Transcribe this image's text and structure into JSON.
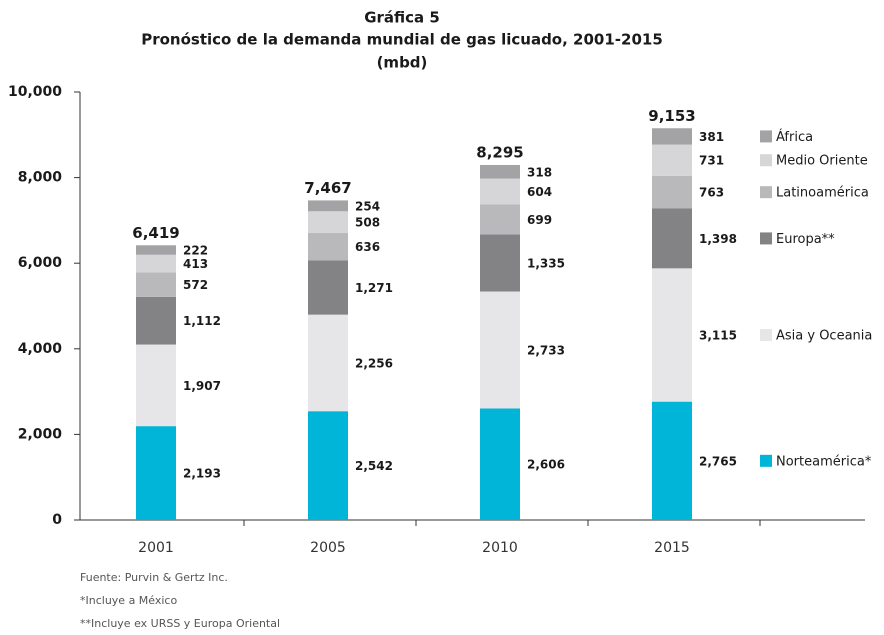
{
  "chart_data": {
    "type": "stacked_bar",
    "title": "Gráfica 5",
    "subtitle": "Pronóstico de la demanda mundial de gas licuado, 2001-2015",
    "unit": "(mbd)",
    "categories": [
      "2001",
      "2005",
      "2010",
      "2015"
    ],
    "series": [
      {
        "name": "Norteamérica*",
        "color": "#00b5d8",
        "values": [
          2193,
          2542,
          2606,
          2765
        ],
        "value_labels": [
          "2,193",
          "2,542",
          "2,606",
          "2,765"
        ]
      },
      {
        "name": "Asia y Oceania",
        "color": "#e6e6e8",
        "values": [
          1907,
          2256,
          2733,
          3115
        ],
        "value_labels": [
          "1,907",
          "2,256",
          "2,733",
          "3,115"
        ]
      },
      {
        "name": "Europa**",
        "color": "#838386",
        "values": [
          1112,
          1271,
          1335,
          1398
        ],
        "value_labels": [
          "1,112",
          "1,271",
          "1,335",
          "1,398"
        ]
      },
      {
        "name": "Latinoamérica",
        "color": "#b9b9bc",
        "values": [
          572,
          636,
          699,
          763
        ]
      },
      {
        "name": "Medio Oriente",
        "color": "#d6d6d8",
        "values": [
          413,
          508,
          604,
          731
        ]
      },
      {
        "name": "África",
        "color": "#a3a3a6",
        "values": [
          222,
          254,
          318,
          381
        ]
      }
    ],
    "totals": [
      6419,
      7467,
      8295,
      9153
    ],
    "total_labels": [
      "6,419",
      "7,467",
      "8,295",
      "9,153"
    ],
    "ylim": [
      0,
      10000
    ],
    "yticks": [
      0,
      {
        "value": 2000,
        "label": "2,000"
      },
      {
        "value": 4000,
        "label": "4,000"
      },
      {
        "value": 6000,
        "label": "6,000"
      },
      {
        "value": 8000,
        "label": "8,000"
      },
      {
        "value": 10000,
        "label": "10,000"
      }
    ],
    "grid": false,
    "legend": "right",
    "notes": [
      "Fuente: Purvin & Gertz Inc.",
      "*Incluye a México",
      "**Incluye ex URSS y Europa Oriental"
    ]
  }
}
